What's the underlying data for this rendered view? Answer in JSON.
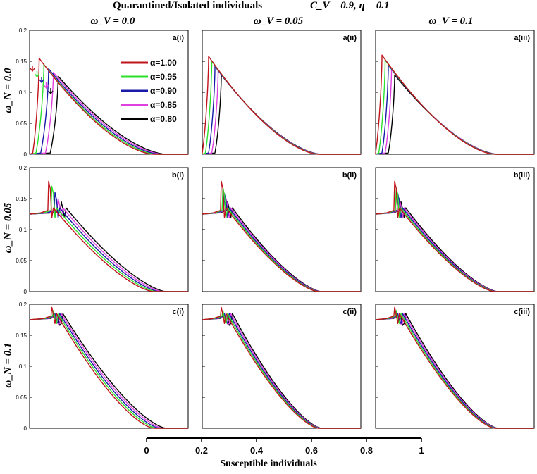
{
  "header": {
    "title": "Quarantined/Isolated individuals",
    "params": "C_V = 0.9, η = 0.1"
  },
  "columns": [
    {
      "label": "ω_V = 0.0"
    },
    {
      "label": "ω_V = 0.05"
    },
    {
      "label": "ω_V = 0.1"
    }
  ],
  "rows": [
    {
      "label": "ω_N = 0.0"
    },
    {
      "label": "ω_N = 0.05"
    },
    {
      "label": "ω_N = 0.1"
    }
  ],
  "panel_labels": [
    [
      "a(i)",
      "a(ii)",
      "a(iii)"
    ],
    [
      "b(i)",
      "b(ii)",
      "b(iii)"
    ],
    [
      "c(i)",
      "c(ii)",
      "c(iii)"
    ]
  ],
  "shared_xaxis": {
    "label": "Susceptible individuals",
    "ticks": [
      "0",
      "0.2",
      "0.4",
      "0.6",
      "0.8",
      "1"
    ],
    "range": [
      0,
      1
    ]
  },
  "chart_data": {
    "type": "line",
    "xlim": [
      0,
      1
    ],
    "ylim": [
      0,
      0.2
    ],
    "yticks": [
      "0",
      "0.05",
      "0.1",
      "0.15",
      "0.2"
    ],
    "legend_location": "upper-left of panel a(i)",
    "series": [
      {
        "name": "α=1.00",
        "color": "#c0141c"
      },
      {
        "name": "α=0.95",
        "color": "#2ee02e"
      },
      {
        "name": "α=0.90",
        "color": "#1a1aa8"
      },
      {
        "name": "α=0.85",
        "color": "#e040e0"
      },
      {
        "name": "α=0.80",
        "color": "#000000"
      }
    ],
    "panels": [
      [
        {
          "rise": [
            0.02,
            0.04,
            0.07,
            0.1,
            0.13
          ],
          "peak": [
            0.155,
            0.145,
            0.138,
            0.132,
            0.126
          ],
          "peak_x": [
            0.06,
            0.09,
            0.12,
            0.15,
            0.18
          ],
          "end": [
            0.78,
            0.8,
            0.82,
            0.84,
            0.86
          ]
        },
        {
          "rise": [
            0.0,
            0.02,
            0.04,
            0.06,
            0.08
          ],
          "peak": [
            0.158,
            0.15,
            0.142,
            0.135,
            0.128
          ],
          "peak_x": [
            0.04,
            0.06,
            0.08,
            0.1,
            0.12
          ],
          "end": [
            0.73,
            0.735,
            0.74,
            0.745,
            0.75
          ]
        },
        {
          "rise": [
            0.0,
            0.02,
            0.04,
            0.06,
            0.08
          ],
          "peak": [
            0.16,
            0.152,
            0.144,
            0.137,
            0.128
          ],
          "peak_x": [
            0.04,
            0.06,
            0.08,
            0.1,
            0.12
          ],
          "end": [
            0.75,
            0.755,
            0.76,
            0.765,
            0.77
          ]
        }
      ],
      [
        {
          "start_y": 0.125,
          "spike_x": [
            0.13,
            0.15,
            0.17,
            0.19,
            0.21
          ],
          "spike_y": [
            0.178,
            0.17,
            0.16,
            0.15,
            0.145
          ],
          "end": [
            0.78,
            0.8,
            0.82,
            0.84,
            0.86
          ]
        },
        {
          "start_y": 0.125,
          "spike_x": [
            0.13,
            0.14,
            0.15,
            0.16,
            0.17
          ],
          "spike_y": [
            0.178,
            0.168,
            0.158,
            0.15,
            0.145
          ],
          "end": [
            0.73,
            0.735,
            0.74,
            0.745,
            0.75
          ]
        },
        {
          "start_y": 0.125,
          "spike_x": [
            0.13,
            0.14,
            0.15,
            0.16,
            0.17
          ],
          "spike_y": [
            0.178,
            0.168,
            0.158,
            0.15,
            0.145
          ],
          "end": [
            0.75,
            0.755,
            0.76,
            0.765,
            0.77
          ]
        }
      ],
      [
        {
          "start_y": 0.175,
          "spike_x": [
            0.15,
            0.16,
            0.17,
            0.18,
            0.19
          ],
          "spike_y": [
            0.195,
            0.19,
            0.185,
            0.18,
            0.178
          ],
          "end": [
            0.78,
            0.8,
            0.82,
            0.84,
            0.86
          ]
        },
        {
          "start_y": 0.175,
          "spike_x": [
            0.13,
            0.14,
            0.15,
            0.16,
            0.17
          ],
          "spike_y": [
            0.195,
            0.19,
            0.185,
            0.18,
            0.178
          ],
          "end": [
            0.73,
            0.735,
            0.74,
            0.745,
            0.75
          ]
        },
        {
          "start_y": 0.175,
          "spike_x": [
            0.13,
            0.14,
            0.15,
            0.16,
            0.17
          ],
          "spike_y": [
            0.195,
            0.19,
            0.185,
            0.18,
            0.178
          ],
          "end": [
            0.75,
            0.755,
            0.76,
            0.765,
            0.77
          ]
        }
      ]
    ]
  }
}
